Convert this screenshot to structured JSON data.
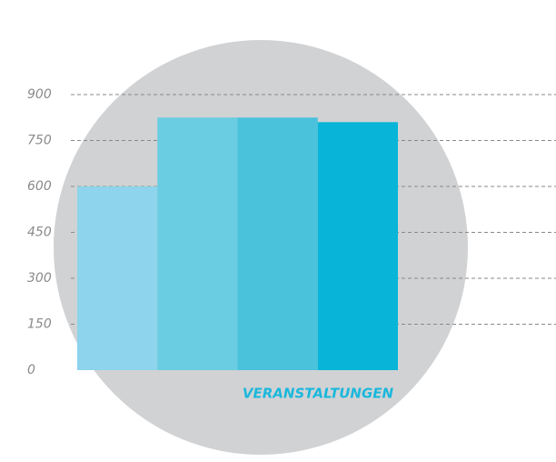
{
  "chart_data": {
    "type": "bar",
    "xlabel": "VERANSTALTUNGEN",
    "categories": [
      null,
      null,
      null,
      null
    ],
    "values": [
      600,
      825,
      825,
      810
    ],
    "colors": [
      "#8dd4ec",
      "#6acde1",
      "#4bc2dc",
      "#08b5d8"
    ],
    "ylim": [
      0,
      900
    ],
    "yticks": [
      0,
      150,
      300,
      450,
      600,
      750,
      900
    ],
    "grid": true
  }
}
